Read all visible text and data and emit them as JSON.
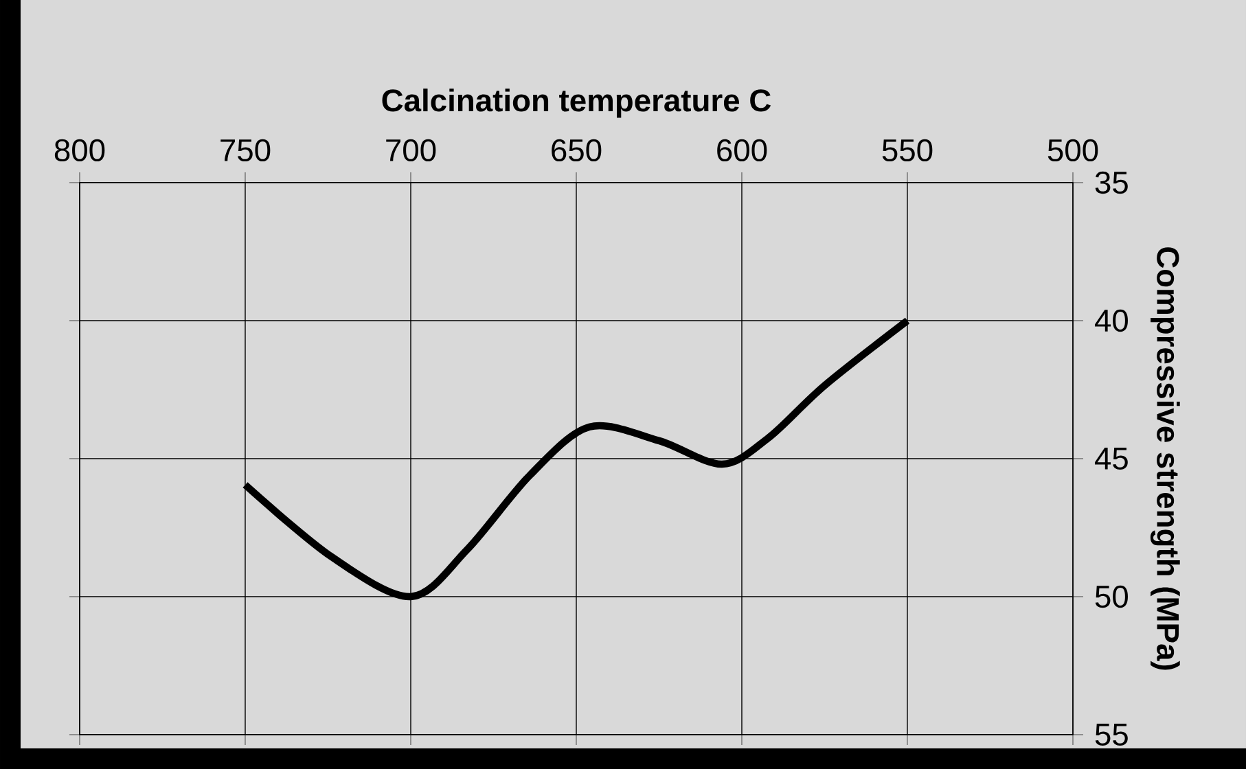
{
  "chart_data": {
    "type": "line",
    "xlabel": "Calcination temperature C",
    "ylabel": "Compressive strength (MPa)",
    "x": [
      550,
      575,
      592,
      606,
      625,
      646,
      664,
      683,
      700,
      724,
      750
    ],
    "series": [
      {
        "color": "#000000",
        "values": [
          40,
          42.35,
          44.25,
          45.2,
          44.35,
          43.85,
          45.6,
          48.3,
          50,
          48.55,
          45.95
        ]
      }
    ],
    "xlim": [
      800,
      500
    ],
    "ylim": [
      55,
      35
    ],
    "xticks": [
      800,
      750,
      700,
      650,
      600,
      550,
      500
    ],
    "yticks": [
      55,
      50,
      45,
      40,
      35
    ],
    "grid": true,
    "marker": "none",
    "line_style": "solid"
  }
}
